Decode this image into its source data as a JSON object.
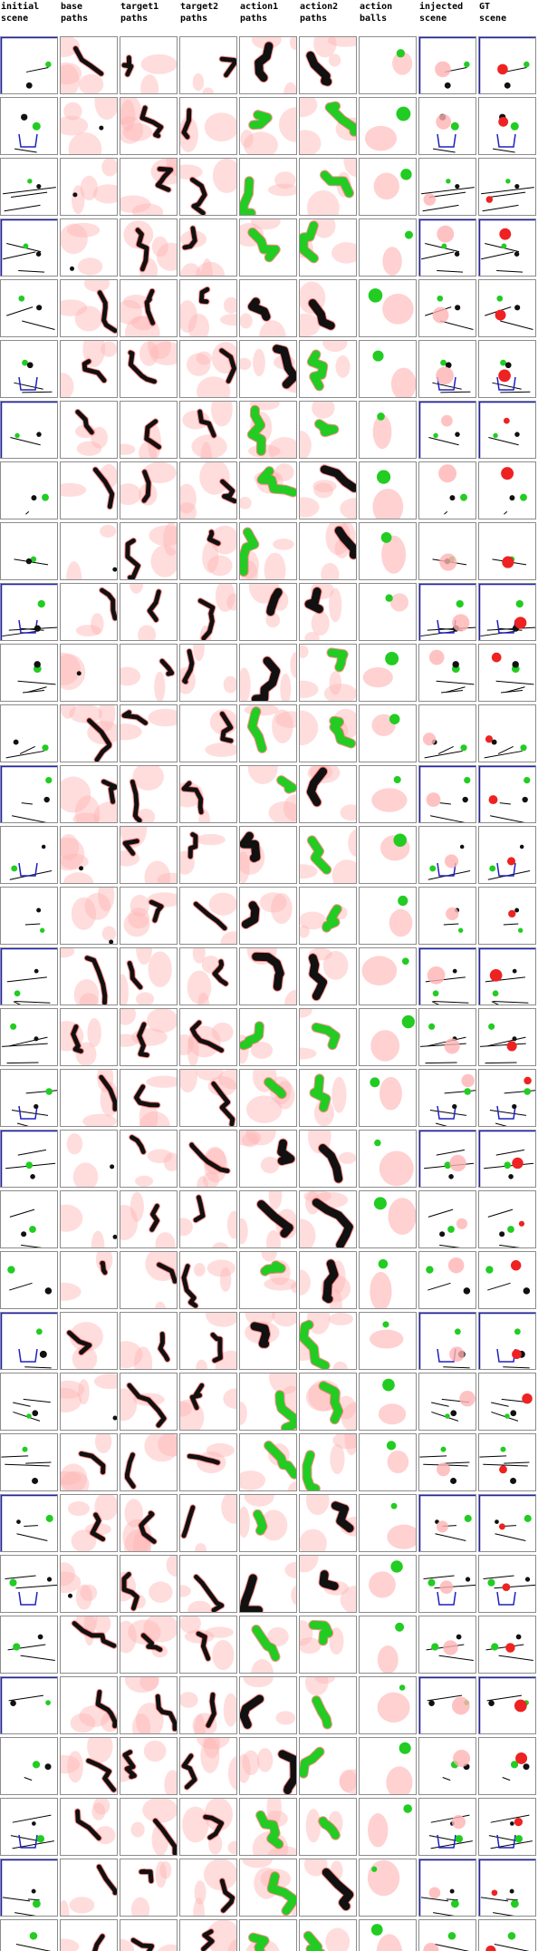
{
  "headers": [
    "initial\nscene",
    "base\npaths",
    "target1\npaths",
    "target2\npaths",
    "action1\npaths",
    "action2\npaths",
    "action\nballs",
    "injected\nscene",
    "GT\nscene"
  ],
  "colors": {
    "object": "#000000",
    "target": "#00b000",
    "action": "#ff0000",
    "wall": "#2020c0",
    "grid": "#8c8c8c",
    "heat": "#ffb3b3"
  },
  "row_count": 32,
  "column_count": 9
}
